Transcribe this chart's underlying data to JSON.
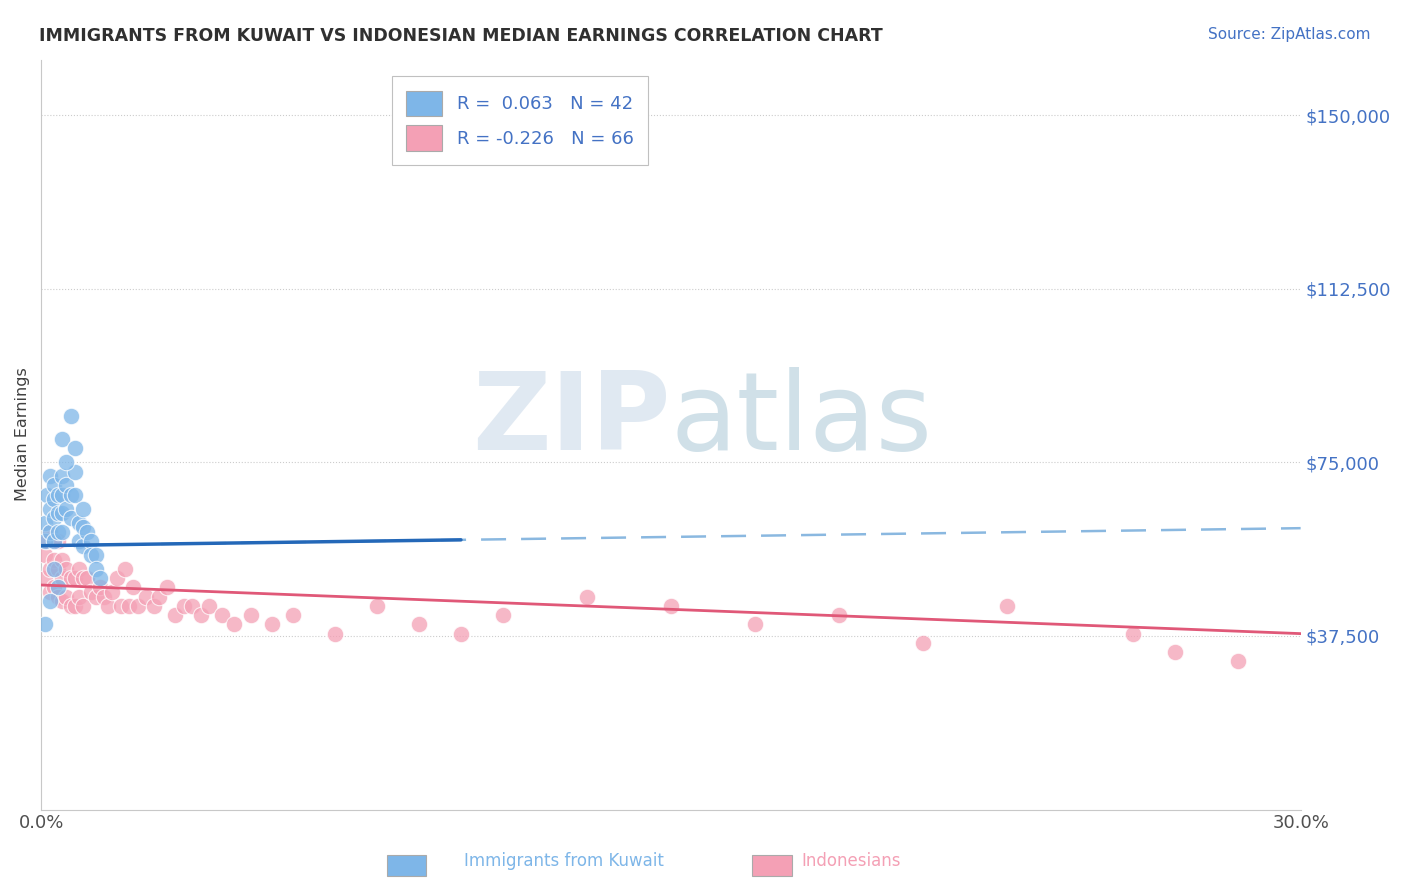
{
  "title": "IMMIGRANTS FROM KUWAIT VS INDONESIAN MEDIAN EARNINGS CORRELATION CHART",
  "source_text": "Source: ZipAtlas.com",
  "ylabel": "Median Earnings",
  "xlim": [
    0.0,
    0.3
  ],
  "ylim": [
    0,
    162000
  ],
  "ytick_vals": [
    37500,
    75000,
    112500,
    150000
  ],
  "ytick_labels": [
    "$37,500",
    "$75,000",
    "$112,500",
    "$150,000"
  ],
  "xtick_vals": [
    0.0,
    0.05,
    0.1,
    0.15,
    0.2,
    0.25,
    0.3
  ],
  "xtick_labels": [
    "0.0%",
    "",
    "",
    "",
    "",
    "",
    "30.0%"
  ],
  "legend_r1": "R =  0.063",
  "legend_n1": "N = 42",
  "legend_r2": "R = -0.226",
  "legend_n2": "N = 66",
  "color_kuwait": "#7EB6E8",
  "color_indonesia": "#F4A0B5",
  "color_line_kuwait_solid": "#2468B8",
  "color_line_kuwait_dashed": "#8AB8E0",
  "color_line_indonesia": "#E05878",
  "color_blue": "#4472C4",
  "color_title": "#303030",
  "kuwait_x": [
    0.001,
    0.001,
    0.0015,
    0.002,
    0.002,
    0.002,
    0.003,
    0.003,
    0.003,
    0.003,
    0.004,
    0.004,
    0.004,
    0.005,
    0.005,
    0.005,
    0.005,
    0.006,
    0.006,
    0.007,
    0.007,
    0.008,
    0.008,
    0.009,
    0.009,
    0.01,
    0.01,
    0.01,
    0.011,
    0.012,
    0.012,
    0.013,
    0.013,
    0.014,
    0.005,
    0.006,
    0.007,
    0.008,
    0.003,
    0.004,
    0.002,
    0.001
  ],
  "kuwait_y": [
    62000,
    58000,
    68000,
    72000,
    65000,
    60000,
    70000,
    67000,
    63000,
    58000,
    68000,
    64000,
    60000,
    72000,
    68000,
    64000,
    60000,
    70000,
    65000,
    68000,
    63000,
    73000,
    68000,
    62000,
    58000,
    65000,
    61000,
    57000,
    60000,
    58000,
    55000,
    55000,
    52000,
    50000,
    80000,
    75000,
    85000,
    78000,
    52000,
    48000,
    45000,
    40000
  ],
  "indonesia_x": [
    0.001,
    0.001,
    0.0015,
    0.002,
    0.002,
    0.002,
    0.003,
    0.003,
    0.003,
    0.004,
    0.004,
    0.004,
    0.005,
    0.005,
    0.005,
    0.006,
    0.006,
    0.007,
    0.007,
    0.008,
    0.008,
    0.009,
    0.009,
    0.01,
    0.01,
    0.011,
    0.012,
    0.013,
    0.014,
    0.015,
    0.016,
    0.017,
    0.018,
    0.019,
    0.02,
    0.021,
    0.022,
    0.023,
    0.025,
    0.027,
    0.028,
    0.03,
    0.032,
    0.034,
    0.036,
    0.038,
    0.04,
    0.043,
    0.046,
    0.05,
    0.055,
    0.06,
    0.07,
    0.08,
    0.09,
    0.1,
    0.11,
    0.13,
    0.15,
    0.17,
    0.19,
    0.21,
    0.23,
    0.26,
    0.27,
    0.285
  ],
  "indonesia_y": [
    55000,
    50000,
    58000,
    60000,
    52000,
    47000,
    58000,
    54000,
    48000,
    58000,
    52000,
    46000,
    54000,
    50000,
    45000,
    52000,
    46000,
    50000,
    44000,
    50000,
    44000,
    52000,
    46000,
    50000,
    44000,
    50000,
    47000,
    46000,
    48000,
    46000,
    44000,
    47000,
    50000,
    44000,
    52000,
    44000,
    48000,
    44000,
    46000,
    44000,
    46000,
    48000,
    42000,
    44000,
    44000,
    42000,
    44000,
    42000,
    40000,
    42000,
    40000,
    42000,
    38000,
    44000,
    40000,
    38000,
    42000,
    46000,
    44000,
    40000,
    42000,
    36000,
    44000,
    38000,
    34000,
    32000
  ]
}
